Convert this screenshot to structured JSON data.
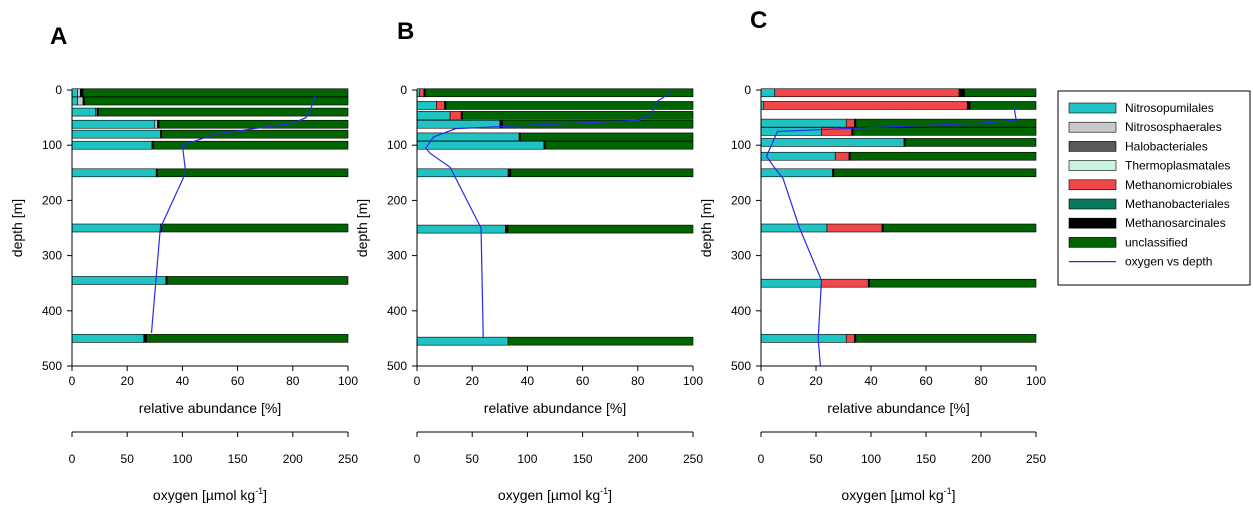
{
  "colors": {
    "Nitrosopumilales": "#1FC3C3",
    "Nitrososphaerales": "#C8C8C8",
    "Halobacteriales": "#5A5A5A",
    "Thermoplasmatales": "#C8F5E0",
    "Methanomicrobiales": "#F04848",
    "Methanobacteriales": "#0A7A5C",
    "Methanosarcinales": "#000000",
    "unclassified": "#006400",
    "oxygen_line": "#2A2AE6",
    "axis": "#000000"
  },
  "legend": {
    "entries": [
      {
        "label": "Nitrosopumilales",
        "color": "#1FC3C3",
        "kind": "box"
      },
      {
        "label": "Nitrososphaerales",
        "color": "#C8C8C8",
        "kind": "box"
      },
      {
        "label": "Halobacteriales",
        "color": "#5A5A5A",
        "kind": "box"
      },
      {
        "label": "Thermoplasmatales",
        "color": "#C8F5E0",
        "kind": "box"
      },
      {
        "label": "Methanomicrobiales",
        "color": "#F04848",
        "kind": "box"
      },
      {
        "label": "Methanobacteriales",
        "color": "#0A7A5C",
        "kind": "box"
      },
      {
        "label": "Methanosarcinales",
        "color": "#000000",
        "kind": "box"
      },
      {
        "label": "unclassified",
        "color": "#006400",
        "kind": "box"
      },
      {
        "label": "oxygen vs depth",
        "color": "#2A2AE6",
        "kind": "line"
      }
    ]
  },
  "chart_data": [
    {
      "panel": "A",
      "type": "bar",
      "orientation": "horizontal-stacked",
      "ylabel": "depth [m]",
      "xlabel": "relative abundance [%]",
      "x2label_main": "oxygen [µmol kg",
      "x2label_sup": "-1",
      "x2label_end": "]",
      "ylim": [
        0,
        500
      ],
      "yticks": [
        "0",
        "100",
        "200",
        "300",
        "400",
        "500"
      ],
      "xlim": [
        0,
        100
      ],
      "xticks": [
        "0",
        "20",
        "40",
        "60",
        "80",
        "100"
      ],
      "x2lim": [
        0,
        250
      ],
      "x2ticks": [
        "0",
        "50",
        "100",
        "150",
        "200",
        "250"
      ],
      "series_order": [
        "Nitrosopumilales",
        "Nitrososphaerales",
        "Halobacteriales",
        "Thermoplasmatales",
        "Methanomicrobiales",
        "Methanobacteriales",
        "Methanosarcinales",
        "unclassified"
      ],
      "bars": [
        {
          "depth": 5,
          "Nitrosopumilales": 2,
          "Nitrososphaerales": 1,
          "Methanosarcinales": 1,
          "unclassified": 96
        },
        {
          "depth": 20,
          "Nitrosopumilales": 2,
          "Nitrososphaerales": 2,
          "Methanosarcinales": 0.5,
          "unclassified": 95.5
        },
        {
          "depth": 40,
          "Nitrosopumilales": 8.5,
          "Nitrososphaerales": 0.5,
          "Methanosarcinales": 0.5,
          "unclassified": 90.5
        },
        {
          "depth": 62,
          "Nitrosopumilales": 30,
          "Nitrososphaerales": 1,
          "Methanosarcinales": 0.5,
          "unclassified": 68.5
        },
        {
          "depth": 80,
          "Nitrosopumilales": 32,
          "Methanosarcinales": 0.5,
          "unclassified": 67.5
        },
        {
          "depth": 100,
          "Nitrosopumilales": 29,
          "Methanosarcinales": 0.5,
          "unclassified": 70.5
        },
        {
          "depth": 150,
          "Nitrosopumilales": 30.5,
          "Methanosarcinales": 0.5,
          "unclassified": 69
        },
        {
          "depth": 250,
          "Nitrosopumilales": 32,
          "Methanosarcinales": 0.5,
          "unclassified": 67.5
        },
        {
          "depth": 345,
          "Nitrosopumilales": 34,
          "Methanosarcinales": 0.5,
          "unclassified": 65.5
        },
        {
          "depth": 450,
          "Nitrosopumilales": 26,
          "Methanosarcinales": 1,
          "unclassified": 73
        }
      ],
      "oxygen": {
        "x": [
          220,
          217,
          212,
          200,
          130,
          100,
          103,
          80,
          72
        ],
        "y": [
          10,
          30,
          50,
          60,
          80,
          100,
          150,
          250,
          440
        ]
      }
    },
    {
      "panel": "B",
      "type": "bar",
      "orientation": "horizontal-stacked",
      "ylabel": "depth [m]",
      "xlabel": "relative abundance [%]",
      "x2label_main": "oxygen [µmol kg",
      "x2label_sup": "-1",
      "x2label_end": "]",
      "ylim": [
        0,
        500
      ],
      "yticks": [
        "0",
        "100",
        "200",
        "300",
        "400",
        "500"
      ],
      "xlim": [
        0,
        100
      ],
      "xticks": [
        "0",
        "20",
        "40",
        "60",
        "80",
        "100"
      ],
      "x2lim": [
        0,
        250
      ],
      "x2ticks": [
        "0",
        "50",
        "100",
        "150",
        "200",
        "250"
      ],
      "series_order": [
        "Nitrosopumilales",
        "Nitrososphaerales",
        "Halobacteriales",
        "Thermoplasmatales",
        "Methanomicrobiales",
        "Methanobacteriales",
        "Methanosarcinales",
        "unclassified"
      ],
      "bars": [
        {
          "depth": 5,
          "Nitrosopumilales": 1,
          "Methanomicrobiales": 1.5,
          "Methanosarcinales": 0.5,
          "unclassified": 97
        },
        {
          "depth": 28,
          "Nitrosopumilales": 7,
          "Methanomicrobiales": 3,
          "Methanosarcinales": 0.5,
          "unclassified": 89.5
        },
        {
          "depth": 46,
          "Nitrosopumilales": 12,
          "Methanomicrobiales": 4,
          "Methanosarcinales": 0.5,
          "unclassified": 83.5
        },
        {
          "depth": 62,
          "Nitrosopumilales": 30,
          "Methanosarcinales": 1,
          "unclassified": 69
        },
        {
          "depth": 85,
          "Nitrosopumilales": 37,
          "Methanosarcinales": 0.5,
          "unclassified": 62.5
        },
        {
          "depth": 100,
          "Nitrosopumilales": 46,
          "Methanosarcinales": 0.5,
          "unclassified": 53.5
        },
        {
          "depth": 150,
          "Nitrosopumilales": 33,
          "Methanosarcinales": 1,
          "unclassified": 66
        },
        {
          "depth": 252,
          "Nitrosopumilales": 32,
          "Methanosarcinales": 1,
          "unclassified": 67
        },
        {
          "depth": 455,
          "Nitrosopumilales": 33,
          "unclassified": 67
        }
      ],
      "oxygen": {
        "x": [
          230,
          218,
          212,
          200,
          35,
          15,
          8,
          12,
          30,
          58,
          60
        ],
        "y": [
          5,
          20,
          45,
          55,
          70,
          85,
          105,
          115,
          140,
          250,
          450
        ]
      }
    },
    {
      "panel": "C",
      "type": "bar",
      "orientation": "horizontal-stacked",
      "ylabel": "depth [m]",
      "xlabel": "relative abundance [%]",
      "x2label_main": "oxygen [µmol kg",
      "x2label_sup": "-1",
      "x2label_end": "]",
      "ylim": [
        0,
        500
      ],
      "yticks": [
        "0",
        "100",
        "200",
        "300",
        "400",
        "500"
      ],
      "xlim": [
        0,
        100
      ],
      "xticks": [
        "0",
        "20",
        "40",
        "60",
        "80",
        "100"
      ],
      "x2lim": [
        0,
        250
      ],
      "x2ticks": [
        "0",
        "50",
        "100",
        "150",
        "200",
        "250"
      ],
      "series_order": [
        "Nitrosopumilales",
        "Nitrososphaerales",
        "Halobacteriales",
        "Thermoplasmatales",
        "Methanomicrobiales",
        "Methanobacteriales",
        "Methanosarcinales",
        "unclassified"
      ],
      "bars": [
        {
          "depth": 5,
          "Nitrosopumilales": 5,
          "Methanomicrobiales": 67,
          "Methanosarcinales": 2,
          "unclassified": 26
        },
        {
          "depth": 28,
          "Nitrosopumilales": 1,
          "Methanomicrobiales": 74,
          "Methanosarcinales": 1,
          "unclassified": 24
        },
        {
          "depth": 60,
          "Nitrosopumilales": 31,
          "Methanomicrobiales": 3,
          "Methanosarcinales": 0.5,
          "unclassified": 65.5
        },
        {
          "depth": 75,
          "Nitrosopumilales": 22,
          "Methanomicrobiales": 11,
          "Methanosarcinales": 0.5,
          "unclassified": 66.5
        },
        {
          "depth": 95,
          "Nitrosopumilales": 52,
          "Methanosarcinales": 0.5,
          "unclassified": 47.5
        },
        {
          "depth": 120,
          "Nitrosopumilales": 27,
          "Methanomicrobiales": 5,
          "Methanosarcinales": 0.5,
          "unclassified": 67.5
        },
        {
          "depth": 150,
          "Nitrosopumilales": 26,
          "Methanosarcinales": 0.5,
          "unclassified": 73.5
        },
        {
          "depth": 250,
          "Nitrosopumilales": 24,
          "Methanomicrobiales": 20,
          "Methanosarcinales": 0.5,
          "unclassified": 55.5
        },
        {
          "depth": 350,
          "Nitrosopumilales": 22,
          "Methanomicrobiales": 17,
          "Methanosarcinales": 0.5,
          "unclassified": 60.5
        },
        {
          "depth": 450,
          "Nitrosopumilales": 31,
          "Methanomicrobiales": 3,
          "Methanosarcinales": 0.5,
          "unclassified": 65.5
        }
      ],
      "oxygen": {
        "x": [
          230,
          232,
          200,
          15,
          5,
          12,
          20,
          35,
          55,
          52,
          54
        ],
        "y": [
          30,
          55,
          60,
          75,
          120,
          140,
          160,
          250,
          345,
          450,
          500
        ]
      }
    }
  ]
}
